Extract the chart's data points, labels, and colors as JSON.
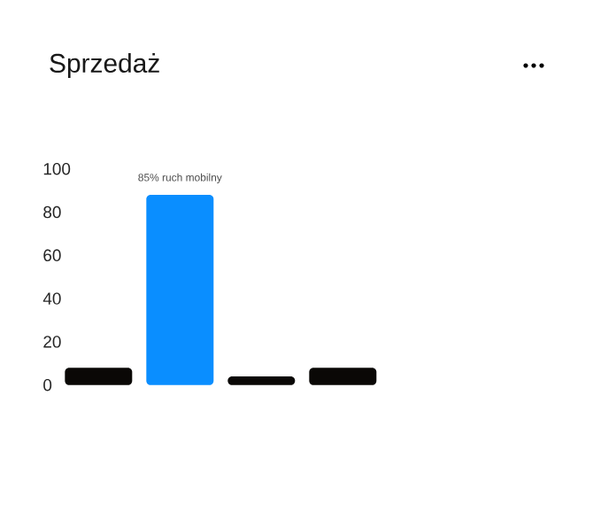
{
  "chart_data": {
    "type": "bar",
    "title": "Sprzedaż",
    "categories": [
      null,
      null,
      null,
      null
    ],
    "values": [
      8,
      88,
      4,
      8
    ],
    "colors": [
      "#0a0806",
      "#0a8eff",
      "#0a0806",
      "#0a0806"
    ],
    "ylim": [
      0,
      100
    ],
    "yticks": [
      0,
      20,
      40,
      60,
      80,
      100
    ],
    "annotations": [
      "85% ruch mobilny"
    ]
  }
}
